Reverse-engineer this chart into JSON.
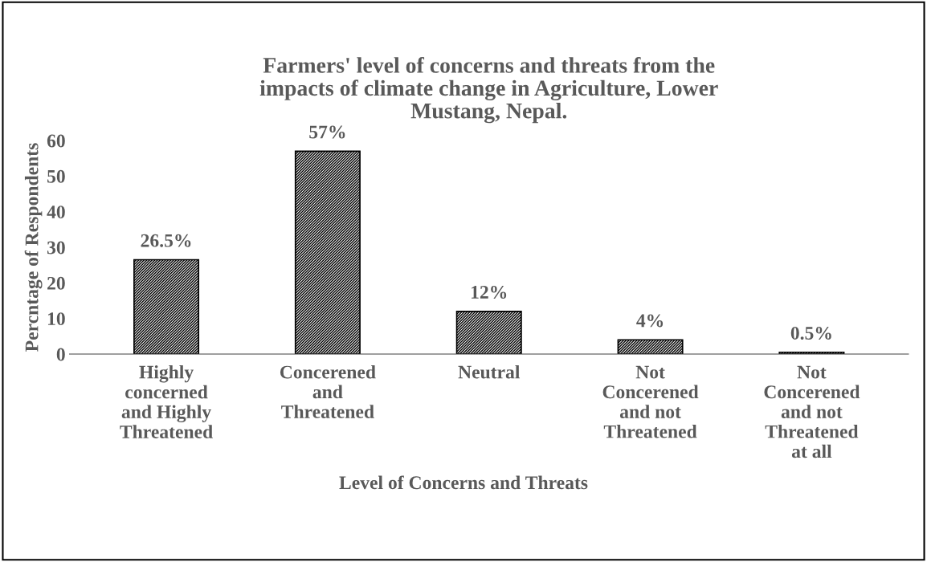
{
  "chart_data": {
    "type": "bar",
    "title": "Farmers' level of concerns and threats from the\nimpacts of climate change in Agriculture, Lower\nMustang, Nepal.",
    "xlabel": "Level of Concerns and Threats",
    "ylabel": "Percntage of Respondents",
    "categories": [
      "Highly\nconcerned\nand Highly\nThreatened",
      "Concerened\nand\nThreatened",
      "Neutral",
      "Not\nConcerened\nand not\nThreatened",
      "Not\nConcerened\nand not\nThreatened\nat all"
    ],
    "values": [
      26.5,
      57,
      12,
      4,
      0.5
    ],
    "value_labels": [
      "26.5%",
      "57%",
      "12%",
      "4%",
      "0.5%"
    ],
    "color": "#000000",
    "ylim": [
      0,
      60
    ],
    "yticks": [
      0,
      10,
      20,
      30,
      40,
      50,
      60
    ],
    "grid": false,
    "legend": false
  }
}
